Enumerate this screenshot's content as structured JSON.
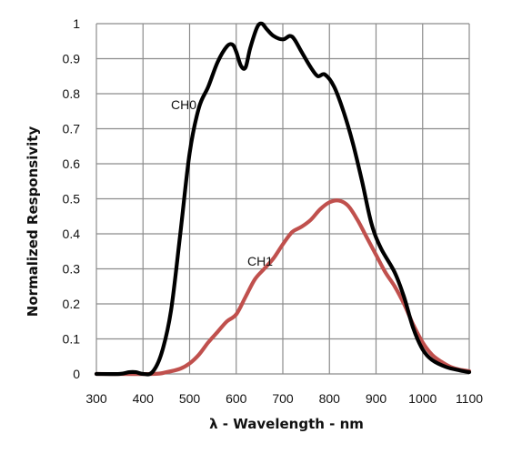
{
  "chart_data": {
    "type": "line",
    "xlabel": "λ - Wavelength - nm",
    "ylabel": "Normalized Responsivity",
    "xlim": [
      300,
      1100
    ],
    "ylim": [
      0,
      1
    ],
    "x_ticks": [
      300,
      400,
      500,
      600,
      700,
      800,
      900,
      1000,
      1100
    ],
    "y_ticks": [
      0,
      0.1,
      0.2,
      0.3,
      0.4,
      0.5,
      0.6,
      0.7,
      0.8,
      0.9,
      1
    ],
    "grid": true,
    "legend": "none (series labeled inline)",
    "series": [
      {
        "name": "CH0",
        "color": "#000000",
        "points": [
          [
            300,
            0
          ],
          [
            350,
            0
          ],
          [
            370,
            0.005
          ],
          [
            385,
            0.005
          ],
          [
            400,
            0
          ],
          [
            420,
            0.005
          ],
          [
            440,
            0.06
          ],
          [
            460,
            0.18
          ],
          [
            480,
            0.4
          ],
          [
            500,
            0.63
          ],
          [
            520,
            0.76
          ],
          [
            540,
            0.82
          ],
          [
            560,
            0.89
          ],
          [
            580,
            0.935
          ],
          [
            592,
            0.94
          ],
          [
            600,
            0.92
          ],
          [
            610,
            0.88
          ],
          [
            620,
            0.875
          ],
          [
            630,
            0.93
          ],
          [
            645,
            0.99
          ],
          [
            655,
            1.0
          ],
          [
            665,
            0.985
          ],
          [
            680,
            0.965
          ],
          [
            700,
            0.955
          ],
          [
            715,
            0.965
          ],
          [
            725,
            0.955
          ],
          [
            740,
            0.92
          ],
          [
            760,
            0.875
          ],
          [
            775,
            0.85
          ],
          [
            790,
            0.855
          ],
          [
            810,
            0.82
          ],
          [
            830,
            0.75
          ],
          [
            850,
            0.66
          ],
          [
            870,
            0.55
          ],
          [
            890,
            0.43
          ],
          [
            910,
            0.36
          ],
          [
            940,
            0.29
          ],
          [
            960,
            0.22
          ],
          [
            980,
            0.13
          ],
          [
            1000,
            0.07
          ],
          [
            1020,
            0.04
          ],
          [
            1050,
            0.02
          ],
          [
            1080,
            0.01
          ],
          [
            1100,
            0.005
          ]
        ]
      },
      {
        "name": "CH1",
        "color": "#C0504D",
        "points": [
          [
            300,
            0
          ],
          [
            420,
            0
          ],
          [
            450,
            0.005
          ],
          [
            480,
            0.015
          ],
          [
            500,
            0.03
          ],
          [
            520,
            0.055
          ],
          [
            540,
            0.09
          ],
          [
            560,
            0.12
          ],
          [
            580,
            0.15
          ],
          [
            600,
            0.17
          ],
          [
            620,
            0.22
          ],
          [
            640,
            0.27
          ],
          [
            660,
            0.3
          ],
          [
            680,
            0.33
          ],
          [
            700,
            0.37
          ],
          [
            720,
            0.405
          ],
          [
            740,
            0.42
          ],
          [
            760,
            0.44
          ],
          [
            780,
            0.47
          ],
          [
            800,
            0.49
          ],
          [
            820,
            0.495
          ],
          [
            840,
            0.48
          ],
          [
            860,
            0.44
          ],
          [
            880,
            0.39
          ],
          [
            900,
            0.34
          ],
          [
            920,
            0.29
          ],
          [
            940,
            0.25
          ],
          [
            960,
            0.2
          ],
          [
            980,
            0.14
          ],
          [
            1000,
            0.09
          ],
          [
            1020,
            0.055
          ],
          [
            1040,
            0.035
          ],
          [
            1060,
            0.02
          ],
          [
            1080,
            0.012
          ],
          [
            1100,
            0.008
          ]
        ]
      }
    ]
  }
}
